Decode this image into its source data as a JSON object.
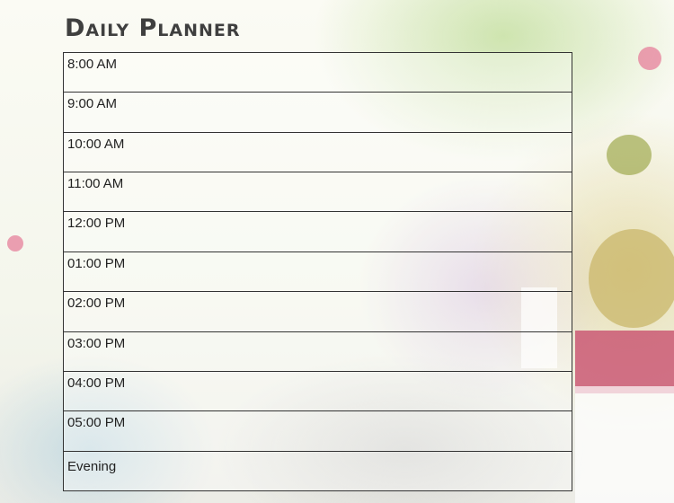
{
  "title": "Daily Planner",
  "slots": [
    {
      "label": "8:00 AM"
    },
    {
      "label": "9:00 AM"
    },
    {
      "label": "10:00 AM"
    },
    {
      "label": "11:00 AM"
    },
    {
      "label": "12:00 PM"
    },
    {
      "label": "01:00 PM"
    },
    {
      "label": "02:00 PM"
    },
    {
      "label": "03:00 PM"
    },
    {
      "label": "04:00 PM"
    },
    {
      "label": "05:00 PM"
    },
    {
      "label": "Evening"
    }
  ]
}
